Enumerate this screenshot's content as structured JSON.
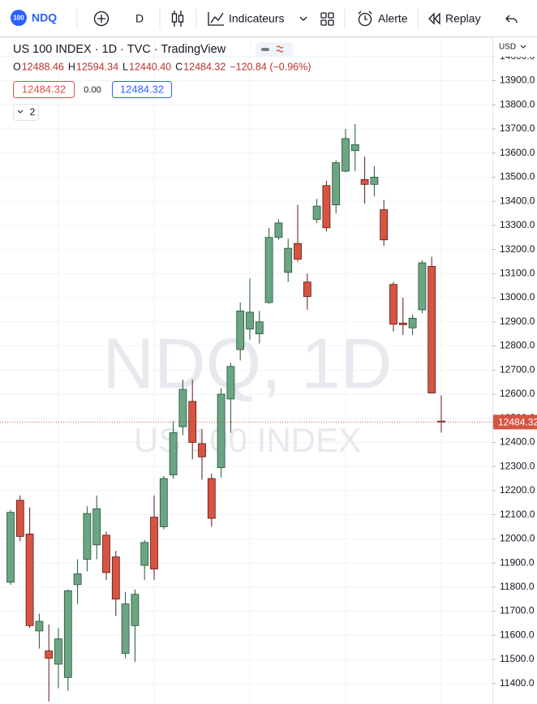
{
  "toolbar": {
    "badge": "100",
    "symbol": "NDQ",
    "interval": "D",
    "indicators": "Indicateurs",
    "alert": "Alerte",
    "replay": "Replay"
  },
  "legend": {
    "title": "US 100 INDEX · 1D · TVC · TradingView",
    "ohlc": [
      {
        "key": "O",
        "value": "12488.46"
      },
      {
        "key": "H",
        "value": "12594.34"
      },
      {
        "key": "L",
        "value": "12440.40"
      },
      {
        "key": "C",
        "value": "12484.32"
      }
    ],
    "change": "−120.84 (−0.96%)",
    "bid": "12484.32",
    "spread": "0.00",
    "ask": "12484.32",
    "collapsed_count": "2"
  },
  "watermark": {
    "line1": "NDQ, 1D",
    "line2": "US 100 INDEX"
  },
  "axis_unit": "USD",
  "price_tag": "12484.32",
  "chart_data": {
    "type": "candlestick",
    "up_color": "#6ba583",
    "down_color": "#d75442",
    "grid": true,
    "ylim": [
      11315,
      14080
    ],
    "yticks": [
      {
        "value": 11400,
        "label": "11400.0"
      },
      {
        "value": 11500,
        "label": "11500.0"
      },
      {
        "value": 11600,
        "label": "11600.0"
      },
      {
        "value": 11700,
        "label": "11700.0"
      },
      {
        "value": 11800,
        "label": "11800.0"
      },
      {
        "value": 11900,
        "label": "11900.0"
      },
      {
        "value": 12000,
        "label": "12000.0"
      },
      {
        "value": 12100,
        "label": "12100.0"
      },
      {
        "value": 12200,
        "label": "12200.0"
      },
      {
        "value": 12300,
        "label": "12300.0"
      },
      {
        "value": 12400,
        "label": "12400.0"
      },
      {
        "value": 12500,
        "label": "12500.0"
      },
      {
        "value": 12600,
        "label": "12600.0"
      },
      {
        "value": 12700,
        "label": "12700.0"
      },
      {
        "value": 12800,
        "label": "12800.0"
      },
      {
        "value": 12900,
        "label": "12900.0"
      },
      {
        "value": 13000,
        "label": "13000.0"
      },
      {
        "value": 13100,
        "label": "13100.0"
      },
      {
        "value": 13200,
        "label": "13200.0"
      },
      {
        "value": 13300,
        "label": "13300.0"
      },
      {
        "value": 13400,
        "label": "13400.0"
      },
      {
        "value": 13500,
        "label": "13500.0"
      },
      {
        "value": 13600,
        "label": "13600.0"
      },
      {
        "value": 13700,
        "label": "13700.0"
      },
      {
        "value": 13800,
        "label": "13800.0"
      },
      {
        "value": 13900,
        "label": "13900.0"
      },
      {
        "value": 14000,
        "label": "14000.0"
      }
    ],
    "open": [
      11820,
      12160,
      12020,
      11618,
      11535,
      11480,
      11425,
      11810,
      11915,
      11975,
      12015,
      11925,
      11525,
      11640,
      11890,
      12090,
      12050,
      12265,
      12465,
      12570,
      12395,
      12250,
      12295,
      12580,
      12785,
      12870,
      12850,
      12980,
      13250,
      13105,
      13225,
      13065,
      13325,
      13465,
      13385,
      13525,
      13610,
      13490,
      13470,
      13365,
      13055,
      12895,
      12875,
      12950,
      13130,
      12488.46
    ],
    "high": [
      12120,
      12180,
      12130,
      11690,
      11645,
      11630,
      11790,
      11915,
      12135,
      12180,
      12030,
      11950,
      11780,
      11790,
      11995,
      12180,
      12260,
      12490,
      12660,
      12660,
      12455,
      12270,
      12625,
      12730,
      12980,
      13080,
      12945,
      13290,
      13325,
      13245,
      13385,
      13100,
      13410,
      13485,
      13570,
      13700,
      13720,
      13585,
      13545,
      13405,
      13065,
      13000,
      12930,
      13155,
      13170,
      12594.34
    ],
    "low": [
      11810,
      11990,
      11630,
      11545,
      11325,
      11380,
      11370,
      11730,
      11865,
      11915,
      11830,
      11680,
      11505,
      11490,
      11830,
      11830,
      12040,
      12250,
      12430,
      12330,
      12245,
      12050,
      12255,
      12440,
      12740,
      12825,
      12810,
      12975,
      13240,
      13065,
      13150,
      12950,
      13310,
      13275,
      13350,
      13520,
      13525,
      13390,
      13420,
      13215,
      12860,
      12845,
      12845,
      12935,
      12605,
      12440.4
    ],
    "close": [
      12110,
      12010,
      11640,
      11658,
      11505,
      11585,
      11785,
      11855,
      12105,
      12125,
      11860,
      11750,
      11730,
      11770,
      11985,
      11875,
      12250,
      12440,
      12620,
      12400,
      12340,
      12085,
      12600,
      12715,
      12945,
      12940,
      12900,
      13250,
      13310,
      13205,
      13160,
      13005,
      13380,
      13290,
      13560,
      13660,
      13635,
      13470,
      13500,
      13240,
      12890,
      12888,
      12915,
      13145,
      12605,
      12484.32
    ]
  }
}
